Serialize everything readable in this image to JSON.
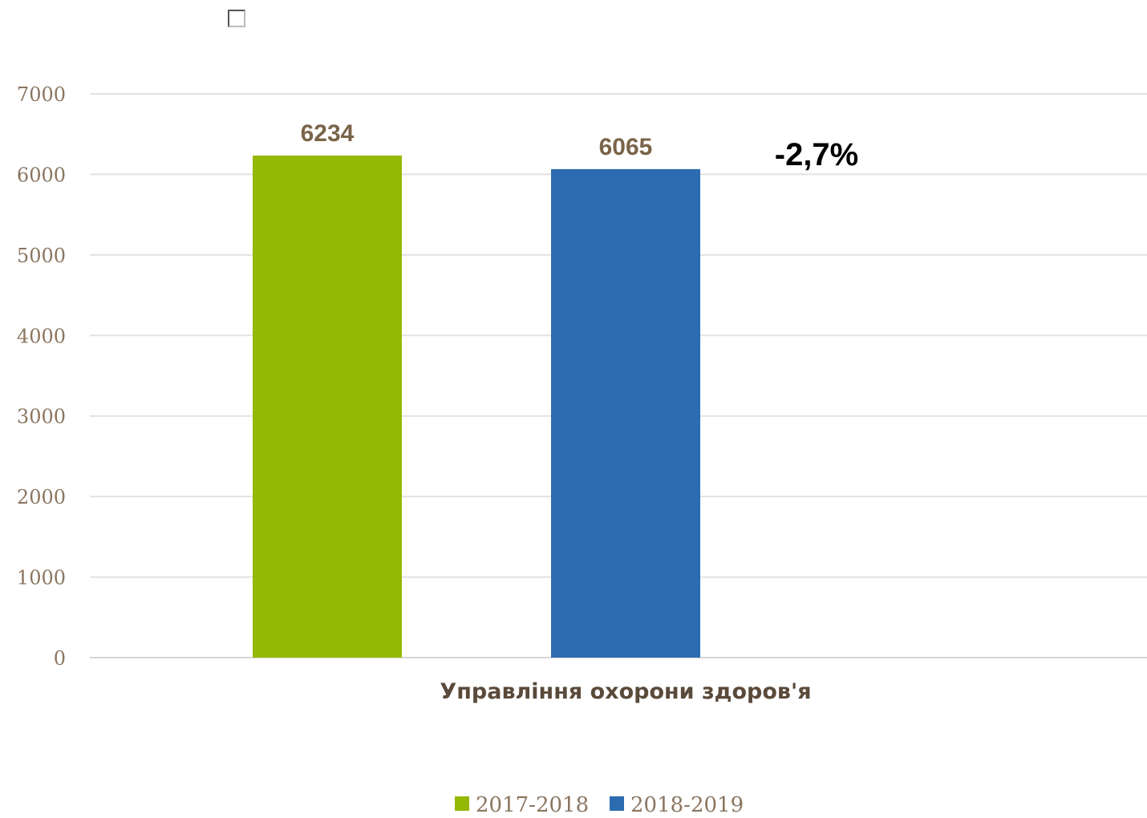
{
  "chart_data": {
    "type": "bar",
    "categories": [
      "Управління охорони здоров'я"
    ],
    "series": [
      {
        "name": "2017-2018",
        "values": [
          6234
        ],
        "color": "#95b804"
      },
      {
        "name": "2018-2019",
        "values": [
          6065
        ],
        "color": "#2b6cb0"
      }
    ],
    "data_labels": [
      "6234",
      "6065"
    ],
    "annotation": "-2,7%",
    "ylim": [
      0,
      7000
    ],
    "yticks": [
      0,
      1000,
      2000,
      3000,
      4000,
      5000,
      6000,
      7000
    ],
    "grid": true,
    "legend_position": "bottom",
    "title": "",
    "xlabel": "",
    "ylabel": ""
  },
  "icons": {
    "corner_box": "checkbox-icon"
  }
}
